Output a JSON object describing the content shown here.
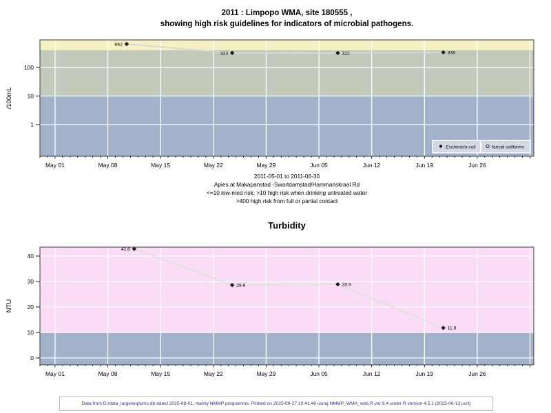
{
  "header": {
    "title_line1": "2011 : Limpopo WMA, site 180555 ,",
    "title_line2": "showing high risk guidelines for indicators of microbial pathogens."
  },
  "footer": {
    "text": "Data from D:/data_large/wq/wms.db dated 2025-08-01, mainly NMMP programme. Plotted on 2025-09-27 10:41:48 using NMMP_WMA_web.R ver 9.4 under R version 4.5.1 (2025-06-13 ucrt)"
  },
  "colors": {
    "footer_text": "#2d2d86",
    "grid": "#ffffff",
    "plot_border": "#3a3a3a",
    "marker": "#1a1a1a"
  },
  "chart_data": [
    {
      "type": "line",
      "title": "2011 : Limpopo WMA, site 180555 , showing high risk guidelines for indicators of microbial pathogens.",
      "ylabel": "/100mL",
      "yscale": "log",
      "ylim": [
        0.078,
        921
      ],
      "yticks": [
        1,
        10,
        100
      ],
      "ytick_labels": [
        "1",
        "10",
        "100"
      ],
      "xlim_days": [
        -2,
        63.5
      ],
      "xticks": [
        {
          "day": 0,
          "label": "May 01"
        },
        {
          "day": 7,
          "label": "May 08"
        },
        {
          "day": 14,
          "label": "May 15"
        },
        {
          "day": 21,
          "label": "May 22"
        },
        {
          "day": 28,
          "label": "May 29"
        },
        {
          "day": 35,
          "label": "Jun 05"
        },
        {
          "day": 42,
          "label": "Jun 12"
        },
        {
          "day": 49,
          "label": "Jun 19"
        },
        {
          "day": 56,
          "label": "Jun 26"
        }
      ],
      "grid_week_days": [
        0,
        7,
        14,
        21,
        28,
        35,
        42,
        49,
        56,
        63
      ],
      "bands": [
        {
          "name": "contact-high-risk",
          "from": 400,
          "to": 921,
          "color": "#f6f1c3",
          "meaning": ">400 high risk from full or partial contact"
        },
        {
          "name": "drinking-high-risk",
          "from": 10,
          "to": 400,
          "color": "#c2cabc",
          "meaning": ">10 high risk when drinking untreated water"
        },
        {
          "name": "low-med-risk",
          "from": 0.078,
          "to": 10,
          "color": "#a2b2ca",
          "meaning": "<=10 low-med risk"
        }
      ],
      "series": [
        {
          "name": "Eschericia coli",
          "marker": "filled-diamond",
          "marker_color": "#1a1a1a",
          "line_color": "#d8d8d8",
          "points": [
            {
              "date": "2011-05-10",
              "day": 9.5,
              "value": 662,
              "label": "662",
              "label_side": "left"
            },
            {
              "date": "2011-05-24",
              "day": 23.5,
              "value": 323,
              "label": "323",
              "label_side": "left"
            },
            {
              "date": "2011-06-07",
              "day": 37.5,
              "value": 322,
              "label": "322",
              "label_side": "right"
            },
            {
              "date": "2011-06-21",
              "day": 51.5,
              "value": 338,
              "label": "338",
              "label_side": "right"
            }
          ]
        },
        {
          "name": "faecal coliforms",
          "marker": "open-circle",
          "marker_color": "#1a1a1a",
          "line_color": "#d8d8d8",
          "points": []
        }
      ],
      "legend": {
        "position": "bottom-right",
        "bg": "#d2d9e4",
        "entries": [
          {
            "marker": "filled-circle",
            "label": "Eschericia coli",
            "italic": true
          },
          {
            "marker": "open-circle",
            "label": "faecal coliforms",
            "italic": false
          }
        ]
      },
      "captions": [
        "2011-05-01 to 2011-06-30",
        "Apies at Makapanstad -Swartdamstad/Hammanskraal Rd",
        "<=10 low-med risk; >10 high risk when drinking untreated water",
        ">400 high risk from full or partial contact"
      ]
    },
    {
      "type": "line",
      "title": "Turbidity",
      "ylabel": "NTU",
      "yscale": "linear",
      "ylim": [
        -2.7,
        43.5
      ],
      "yticks": [
        0,
        10,
        20,
        30,
        40
      ],
      "ytick_labels": [
        "0",
        "10",
        "20",
        "30",
        "40"
      ],
      "xlim_days": [
        -2,
        63.5
      ],
      "xticks": [
        {
          "day": 0,
          "label": "May 01"
        },
        {
          "day": 7,
          "label": "May 08"
        },
        {
          "day": 14,
          "label": "May 15"
        },
        {
          "day": 21,
          "label": "May 22"
        },
        {
          "day": 28,
          "label": "May 29"
        },
        {
          "day": 35,
          "label": "Jun 05"
        },
        {
          "day": 42,
          "label": "Jun 12"
        },
        {
          "day": 49,
          "label": "Jun 19"
        },
        {
          "day": 56,
          "label": "Jun 26"
        }
      ],
      "grid_week_days": [
        0,
        7,
        14,
        21,
        28,
        35,
        42,
        49,
        56,
        63
      ],
      "bands": [
        {
          "name": "above-guideline",
          "from": 10,
          "to": 43.5,
          "color": "#fadcf7",
          "meaning": ">10 NTU"
        },
        {
          "name": "below-guideline",
          "from": -2.7,
          "to": 10,
          "color": "#a2b2ca",
          "meaning": "<=10 NTU"
        }
      ],
      "series": [
        {
          "name": "Turbidity",
          "marker": "filled-diamond",
          "marker_color": "#1a1a1a",
          "line_color": "#dde3d8",
          "points": [
            {
              "date": "2011-05-11",
              "day": 10.5,
              "value": 42.8,
              "label": "42.8",
              "label_side": "left"
            },
            {
              "date": "2011-05-24",
              "day": 23.5,
              "value": 28.6,
              "label": "28.6",
              "label_side": "right"
            },
            {
              "date": "2011-06-07",
              "day": 37.5,
              "value": 28.9,
              "label": "28.9",
              "label_side": "right"
            },
            {
              "date": "2011-06-21",
              "day": 51.5,
              "value": 11.8,
              "label": "11.8",
              "label_side": "right"
            }
          ]
        }
      ]
    }
  ]
}
